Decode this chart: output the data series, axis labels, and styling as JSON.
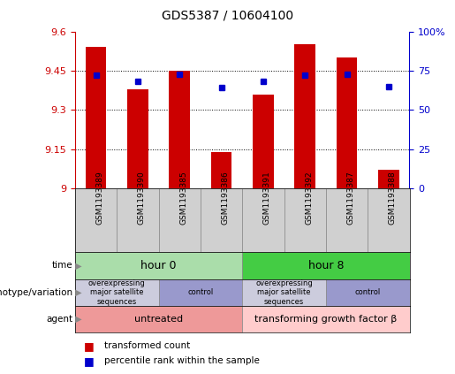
{
  "title": "GDS5387 / 10604100",
  "samples": [
    "GSM1193389",
    "GSM1193390",
    "GSM1193385",
    "GSM1193386",
    "GSM1193391",
    "GSM1193392",
    "GSM1193387",
    "GSM1193388"
  ],
  "red_values": [
    9.54,
    9.38,
    9.45,
    9.14,
    9.36,
    9.55,
    9.5,
    9.07
  ],
  "blue_values": [
    72,
    68,
    73,
    64,
    68,
    72,
    73,
    65
  ],
  "y_min": 9.0,
  "y_max": 9.6,
  "y_ticks": [
    9.0,
    9.15,
    9.3,
    9.45,
    9.6
  ],
  "y_tick_labels": [
    "9",
    "9.15",
    "9.3",
    "9.45",
    "9.6"
  ],
  "y_right_ticks": [
    0,
    25,
    50,
    75,
    100
  ],
  "y_right_labels": [
    "0",
    "25",
    "50",
    "75",
    "100%"
  ],
  "bar_color": "#cc0000",
  "dot_color": "#0000cc",
  "tick_color_left": "#cc0000",
  "tick_color_right": "#0000cc",
  "time_groups": [
    {
      "text": "hour 0",
      "start": 0,
      "end": 4,
      "color": "#aaddaa"
    },
    {
      "text": "hour 8",
      "start": 4,
      "end": 8,
      "color": "#44cc44"
    }
  ],
  "genotype_groups": [
    {
      "text": "overexpressing\nmajor satellite\nsequences",
      "start": 0,
      "end": 2,
      "color": "#ccccdd"
    },
    {
      "text": "control",
      "start": 2,
      "end": 4,
      "color": "#9999cc"
    },
    {
      "text": "overexpressing\nmajor satellite\nsequences",
      "start": 4,
      "end": 6,
      "color": "#ccccdd"
    },
    {
      "text": "control",
      "start": 6,
      "end": 8,
      "color": "#9999cc"
    }
  ],
  "agent_groups": [
    {
      "text": "untreated",
      "start": 0,
      "end": 4,
      "color": "#ee9999"
    },
    {
      "text": "transforming growth factor β",
      "start": 4,
      "end": 8,
      "color": "#ffcccc"
    }
  ],
  "row_labels": [
    "time",
    "genotype/variation",
    "agent"
  ],
  "legend_items": [
    {
      "color": "#cc0000",
      "label": "transformed count"
    },
    {
      "color": "#0000cc",
      "label": "percentile rank within the sample"
    }
  ]
}
